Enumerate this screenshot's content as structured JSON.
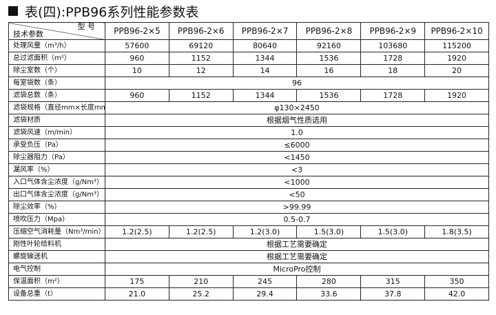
{
  "title": "表(四):PPB96系列性能参数表",
  "corner_top": "型  号",
  "corner_bottom": "技术参数",
  "models": [
    "PPB96-2×5",
    "PPB96-2×6",
    "PPB96-2×7",
    "PPB96-2×8",
    "PPB96-2×9",
    "PPB96-2×10"
  ],
  "rows": [
    {
      "label": "处理风量（m³/h）",
      "values": [
        "57600",
        "69120",
        "80640",
        "92160",
        "103680",
        "115200"
      ]
    },
    {
      "label": "总过滤面积（m²）",
      "values": [
        "960",
        "1152",
        "1344",
        "1536",
        "1728",
        "1920"
      ]
    },
    {
      "label": "除尘室数（个）",
      "values": [
        "10",
        "12",
        "14",
        "16",
        "18",
        "20"
      ]
    },
    {
      "label": "每室袋数（条）",
      "span": "96"
    },
    {
      "label": "滤袋总数（条）",
      "values": [
        "960",
        "1152",
        "1344",
        "1536",
        "1728",
        "1920"
      ]
    },
    {
      "label": "滤袋规格（直径mm×长度mm）",
      "span": "φ130×2450"
    },
    {
      "label": "滤袋材质",
      "span": "根据烟气性质选用"
    },
    {
      "label": "滤袋风速（m/min）",
      "span": "1.0"
    },
    {
      "label": "承受负压（Pa）",
      "span": "≤6000"
    },
    {
      "label": "除尘器阻力（Pa）",
      "span": "<1450"
    },
    {
      "label": "漏风率（%）",
      "span": "<3"
    },
    {
      "label": "入口气体含尘浓度（g/Nm³）",
      "span": "<1000"
    },
    {
      "label": "出口气体含尘浓度（g/Nm³）",
      "span": "<50"
    },
    {
      "label": "除尘效率（%）",
      "span": ">99.99"
    },
    {
      "label": "喷吹压力（Mpa）",
      "span": "0.5-0.7"
    },
    {
      "label": "压缩空气消耗量（Nm³/min）",
      "values": [
        "1.2(2.5)",
        "1.2(2.5)",
        "1.2(3.0)",
        "1.5(3.0)",
        "1.5(3.0)",
        "1.8(3.5)"
      ]
    },
    {
      "label": "刚性叶轮给料机",
      "span": "根据工艺需要确定"
    },
    {
      "label": "螺旋输送机",
      "span": "根据工艺需要确定"
    },
    {
      "label": "电气控制",
      "span": "MicroPro控制"
    },
    {
      "label": "保温面积（m²）",
      "values": [
        "175",
        "210",
        "245",
        "280",
        "315",
        "350"
      ]
    },
    {
      "label": "设备总重（t）",
      "values": [
        "21.0",
        "25.2",
        "29.4",
        "33.6",
        "37.8",
        "42.0"
      ]
    }
  ]
}
